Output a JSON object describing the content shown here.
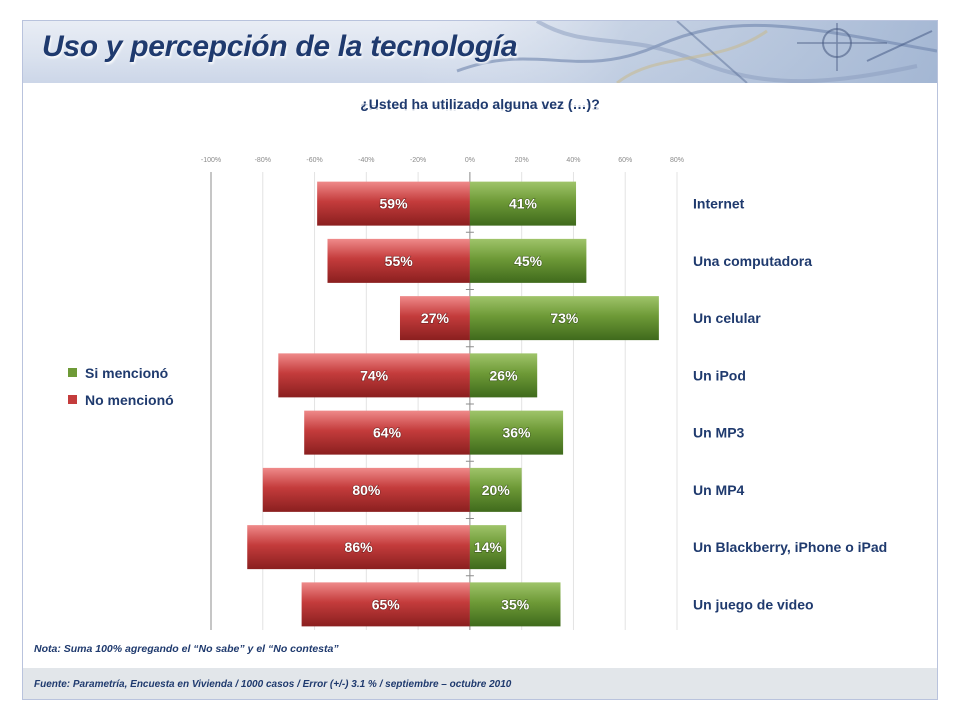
{
  "header": {
    "title": "Uso y percepción de la tecnología"
  },
  "chart_data": {
    "type": "bar",
    "orientation": "horizontal-diverging",
    "title": "¿Usted ha utilizado alguna vez (…)?",
    "categories": [
      "Internet",
      "Una computadora",
      "Un celular",
      "Un iPod",
      "Un MP3",
      "Un MP4",
      "Un Blackberry, iPhone o iPad",
      "Un juego de video"
    ],
    "series": [
      {
        "name": "Si mencionó",
        "color": "#6e9a37",
        "values": [
          41,
          45,
          73,
          26,
          36,
          20,
          14,
          35
        ]
      },
      {
        "name": "No mencionó",
        "color": "#c43c3c",
        "values": [
          59,
          55,
          27,
          74,
          64,
          80,
          86,
          65
        ]
      }
    ],
    "xlim": [
      -100,
      80
    ],
    "xticks": [
      "-100%",
      "-80%",
      "-60%",
      "-40%",
      "-20%",
      "0%",
      "20%",
      "40%",
      "60%",
      "80%"
    ],
    "value_labels": {
      "si": [
        "41%",
        "45%",
        "73%",
        "26%",
        "36%",
        "20%",
        "14%",
        "35%"
      ],
      "no": [
        "59%",
        "55%",
        "27%",
        "74%",
        "64%",
        "80%",
        "86%",
        "65%"
      ]
    },
    "grid": true,
    "legend_position": "left"
  },
  "legend": {
    "items": [
      {
        "label": "Si mencionó",
        "color": "#6e9a37"
      },
      {
        "label": "No mencionó",
        "color": "#c43c3c"
      }
    ]
  },
  "footer": {
    "note": "Nota: Suma 100% agregando el “No sabe” y el “No contesta”",
    "source": "Fuente: Parametría, Encuesta en Vivienda / 1000 casos / Error (+/-) 3.1 % / septiembre – octubre 2010"
  }
}
